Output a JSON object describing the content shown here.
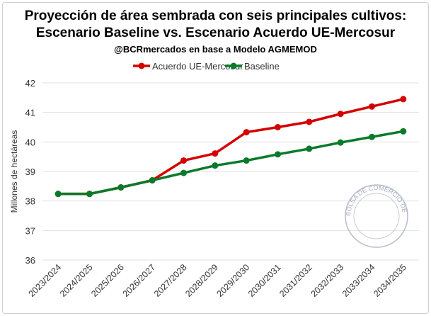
{
  "chart_data": {
    "type": "line",
    "title": "Proyección de área sembrada con seis principales cultivos:",
    "title2": "Escenario Baseline vs. Escenario Acuerdo UE-Mercosur",
    "subtitle": "@BCRmercados en base a Modelo AGMEMOD",
    "ylabel": "Millones de hectáreas",
    "xlabel": "",
    "ylim": [
      36,
      42
    ],
    "yticks": [
      36,
      37,
      38,
      39,
      40,
      41,
      42
    ],
    "grid": true,
    "legend": "top",
    "categories": [
      "2023/2024",
      "2024/2025",
      "2025/2026",
      "2026/2027",
      "2027/2028",
      "2028/2029",
      "2029/2030",
      "2030/2031",
      "2031/2032",
      "2032/2033",
      "2033/2034",
      "2034/2035"
    ],
    "series": [
      {
        "name": "Acuerdo UE-Mercosur",
        "color": "#d40000",
        "values": [
          38.24,
          38.24,
          38.46,
          38.7,
          39.37,
          39.61,
          40.33,
          40.5,
          40.68,
          40.95,
          41.2,
          41.45
        ]
      },
      {
        "name": "Baseline",
        "color": "#0a7a2a",
        "values": [
          38.24,
          38.24,
          38.46,
          38.7,
          38.95,
          39.2,
          39.37,
          39.58,
          39.77,
          39.98,
          40.17,
          40.36
        ]
      }
    ]
  },
  "watermark": "BOLSA DE COMERCIO DE ROSARIO"
}
